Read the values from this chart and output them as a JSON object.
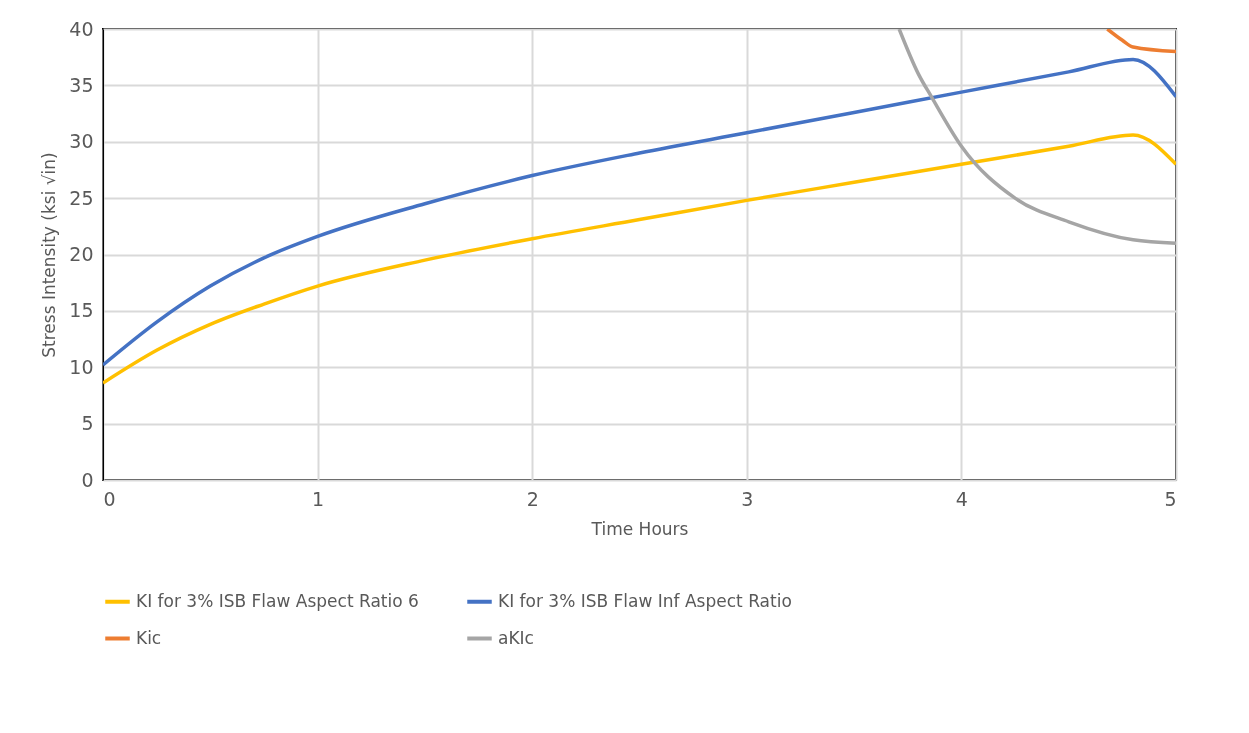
{
  "chart_data": {
    "type": "line",
    "xlabel": "Time Hours",
    "ylabel": "Stress Intensity (ksi √in)",
    "xlim": [
      0,
      5
    ],
    "xticks": [
      0,
      1,
      2,
      3,
      4,
      5
    ],
    "ylim": [
      0,
      40
    ],
    "yticks": [
      0,
      5,
      10,
      15,
      20,
      25,
      30,
      35,
      40
    ],
    "grid": true,
    "legend": "bottom",
    "marker": "none",
    "line_style": "solid",
    "series": [
      {
        "name": "KI for 3% ISB Flaw Aspect Ratio 6",
        "color": "#ffc000",
        "x": [
          0,
          0.25,
          0.5,
          0.75,
          1,
          1.5,
          2,
          2.5,
          3,
          3.5,
          4,
          4.5,
          4.8,
          5
        ],
        "values": [
          8.6,
          11.5,
          13.8,
          15.6,
          17.2,
          19.5,
          21.4,
          23.1,
          24.8,
          26.4,
          28.0,
          29.6,
          30.6,
          28.0
        ]
      },
      {
        "name": "KI for 3% ISB Flaw Inf Aspect Ratio",
        "color": "#4472c4",
        "x": [
          0,
          0.25,
          0.5,
          0.75,
          1,
          1.5,
          2,
          2.5,
          3,
          3.5,
          4,
          4.5,
          4.8,
          5
        ],
        "values": [
          10.2,
          14.0,
          17.2,
          19.7,
          21.6,
          24.5,
          27.0,
          29.0,
          30.8,
          32.6,
          34.4,
          36.2,
          37.3,
          34.0
        ]
      },
      {
        "name": "Kic",
        "color": "#ed7d31",
        "x": [
          4.68,
          4.75,
          4.8,
          5
        ],
        "values": [
          40,
          39.0,
          38.4,
          38.0
        ]
      },
      {
        "name": "aKIc",
        "color": "#a5a5a5",
        "x": [
          3.71,
          3.8,
          3.86,
          4,
          4.25,
          4.5,
          4.8,
          5
        ],
        "values": [
          40,
          36.0,
          34.0,
          29.6,
          25.0,
          22.9,
          21.3,
          21.0
        ]
      }
    ]
  }
}
